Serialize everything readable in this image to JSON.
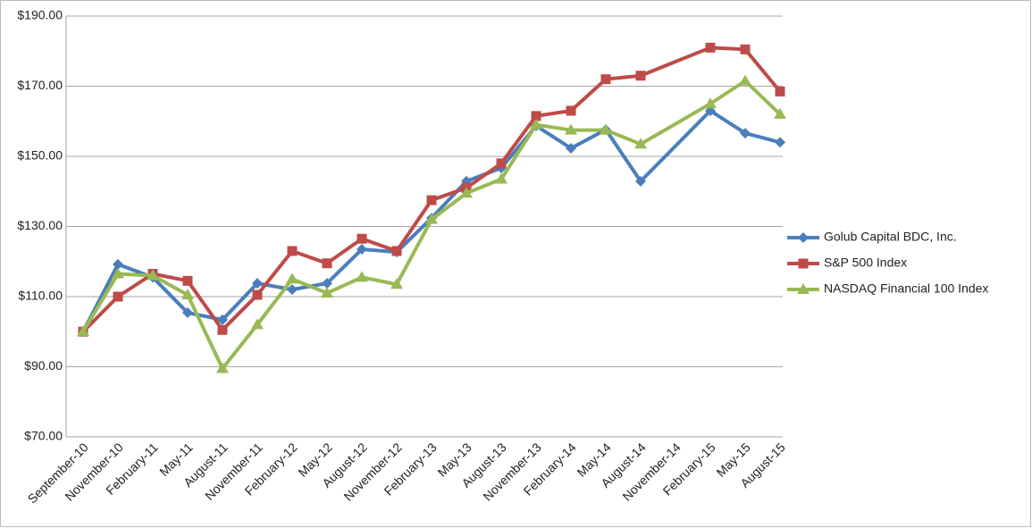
{
  "chart_data": {
    "type": "line",
    "categories": [
      "September-10",
      "November-10",
      "February-11",
      "May-11",
      "August-11",
      "November-11",
      "February-12",
      "May-12",
      "August-12",
      "November-12",
      "February-13",
      "May-13",
      "August-13",
      "November-13",
      "February-14",
      "May-14",
      "August-14",
      "November-14",
      "February-15",
      "May-15",
      "August-15"
    ],
    "series": [
      {
        "name": "Golub Capital BDC, Inc.",
        "color": "#4a7ebb",
        "marker": "diamond",
        "values": [
          100,
          119.2,
          115.5,
          105.4,
          103.4,
          113.8,
          112,
          113.8,
          123.5,
          122.7,
          132.4,
          142.9,
          146.7,
          158.7,
          152.3,
          157.6,
          142.9,
          null,
          163,
          156.6,
          154
        ]
      },
      {
        "name": "S&P 500 Index",
        "color": "#be4b48",
        "marker": "square",
        "values": [
          100,
          110,
          116.5,
          114.5,
          100.5,
          110.5,
          123,
          119.5,
          126.5,
          123,
          137.5,
          141,
          148,
          161.5,
          163,
          172,
          173,
          null,
          181,
          180.5,
          168.5
        ]
      },
      {
        "name": "NASDAQ Financial 100 Index",
        "color": "#98b954",
        "marker": "triangle",
        "values": [
          100,
          116.5,
          116,
          110.5,
          89.5,
          102,
          115,
          111,
          115.5,
          113.5,
          132,
          139.5,
          143.5,
          159,
          157.5,
          157.5,
          153.5,
          null,
          165,
          171.5,
          162
        ]
      }
    ],
    "ylim": [
      70,
      190
    ],
    "yticks": [
      {
        "value": 70,
        "label": "$70.00"
      },
      {
        "value": 90,
        "label": "$90.00"
      },
      {
        "value": 110,
        "label": "$110.00"
      },
      {
        "value": 130,
        "label": "$130.00"
      },
      {
        "value": 150,
        "label": "$150.00"
      },
      {
        "value": 170,
        "label": "$170.00"
      },
      {
        "value": 190,
        "label": "$190.00"
      }
    ],
    "grid": true,
    "legend": "right"
  }
}
